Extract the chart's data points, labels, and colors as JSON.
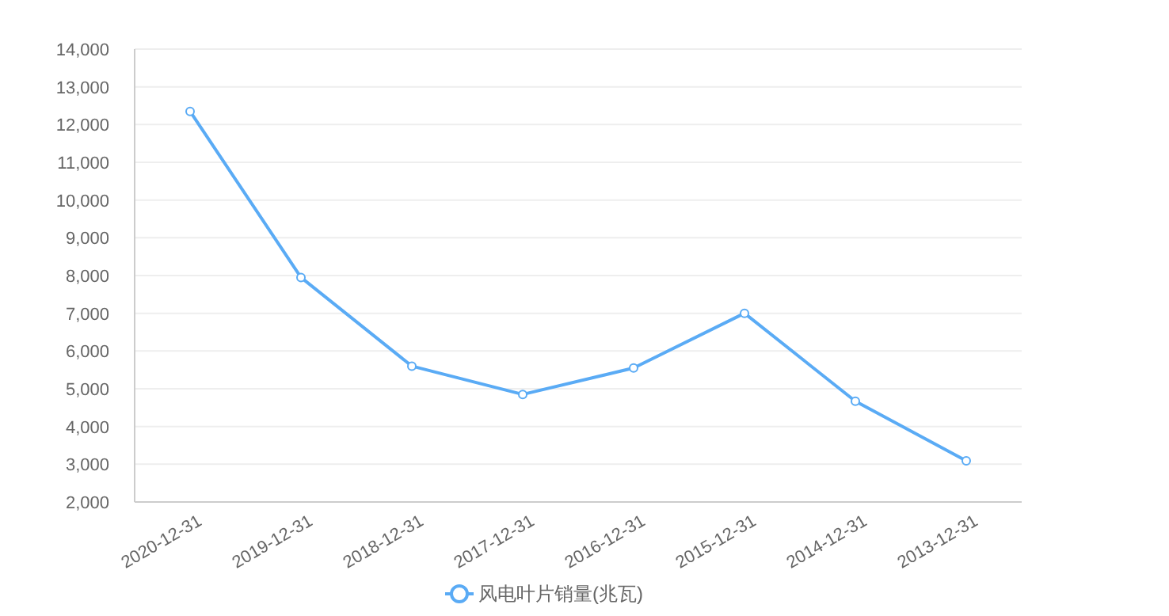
{
  "chart_data": {
    "type": "line",
    "categories": [
      "2020-12-31",
      "2019-12-31",
      "2018-12-31",
      "2017-12-31",
      "2016-12-31",
      "2015-12-31",
      "2014-12-31",
      "2013-12-31"
    ],
    "series": [
      {
        "name": "风电叶片销量(兆瓦)",
        "color": "#5aabf5",
        "values": [
          12350,
          7950,
          5600,
          4850,
          5550,
          7000,
          4670,
          3090
        ]
      }
    ],
    "ylim": [
      2000,
      14000
    ],
    "yticks": [
      {
        "value": 2000,
        "label": "2,000"
      },
      {
        "value": 3000,
        "label": "3,000"
      },
      {
        "value": 4000,
        "label": "4,000"
      },
      {
        "value": 5000,
        "label": "5,000"
      },
      {
        "value": 6000,
        "label": "6,000"
      },
      {
        "value": 7000,
        "label": "7,000"
      },
      {
        "value": 8000,
        "label": "8,000"
      },
      {
        "value": 9000,
        "label": "9,000"
      },
      {
        "value": 10000,
        "label": "10,000"
      },
      {
        "value": 11000,
        "label": "11,000"
      },
      {
        "value": 12000,
        "label": "12,000"
      },
      {
        "value": 13000,
        "label": "13,000"
      },
      {
        "value": 14000,
        "label": "14,000"
      }
    ],
    "grid": "y",
    "legend": "bottom",
    "marker": "circle",
    "line_style": "solid"
  }
}
